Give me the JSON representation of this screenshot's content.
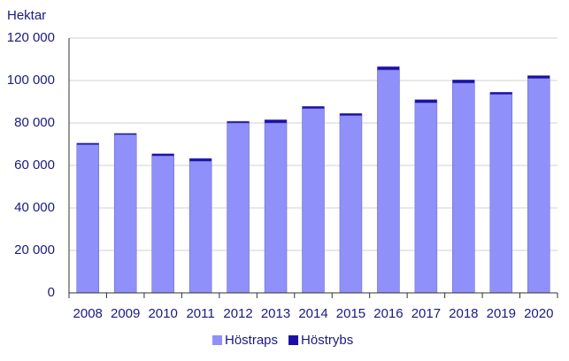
{
  "chart_data": {
    "type": "stacked-bar",
    "y_label": "Hektar",
    "categories": [
      "2008",
      "2009",
      "2010",
      "2011",
      "2012",
      "2013",
      "2014",
      "2015",
      "2016",
      "2017",
      "2018",
      "2019",
      "2020"
    ],
    "series": [
      {
        "name": "Höstraps",
        "color": "#9090fa",
        "values": [
          69800,
          74500,
          64500,
          62000,
          80000,
          80000,
          86800,
          83500,
          105000,
          89500,
          98800,
          93500,
          101000
        ]
      },
      {
        "name": "Höstrybs",
        "color": "#1a10a8",
        "values": [
          700,
          600,
          1000,
          1300,
          800,
          1500,
          1000,
          1000,
          1500,
          1500,
          1500,
          1000,
          1300
        ]
      }
    ],
    "ylim": [
      0,
      120000
    ],
    "yticks": [
      0,
      {
        "value": 20000,
        "label": "20 000"
      },
      {
        "value": 40000,
        "label": "40 000"
      },
      {
        "value": 60000,
        "label": "60 000"
      },
      {
        "value": 80000,
        "label": "80 000"
      },
      {
        "value": 100000,
        "label": "100 000"
      },
      {
        "value": 120000,
        "label": "120 000"
      }
    ],
    "grid": true
  }
}
